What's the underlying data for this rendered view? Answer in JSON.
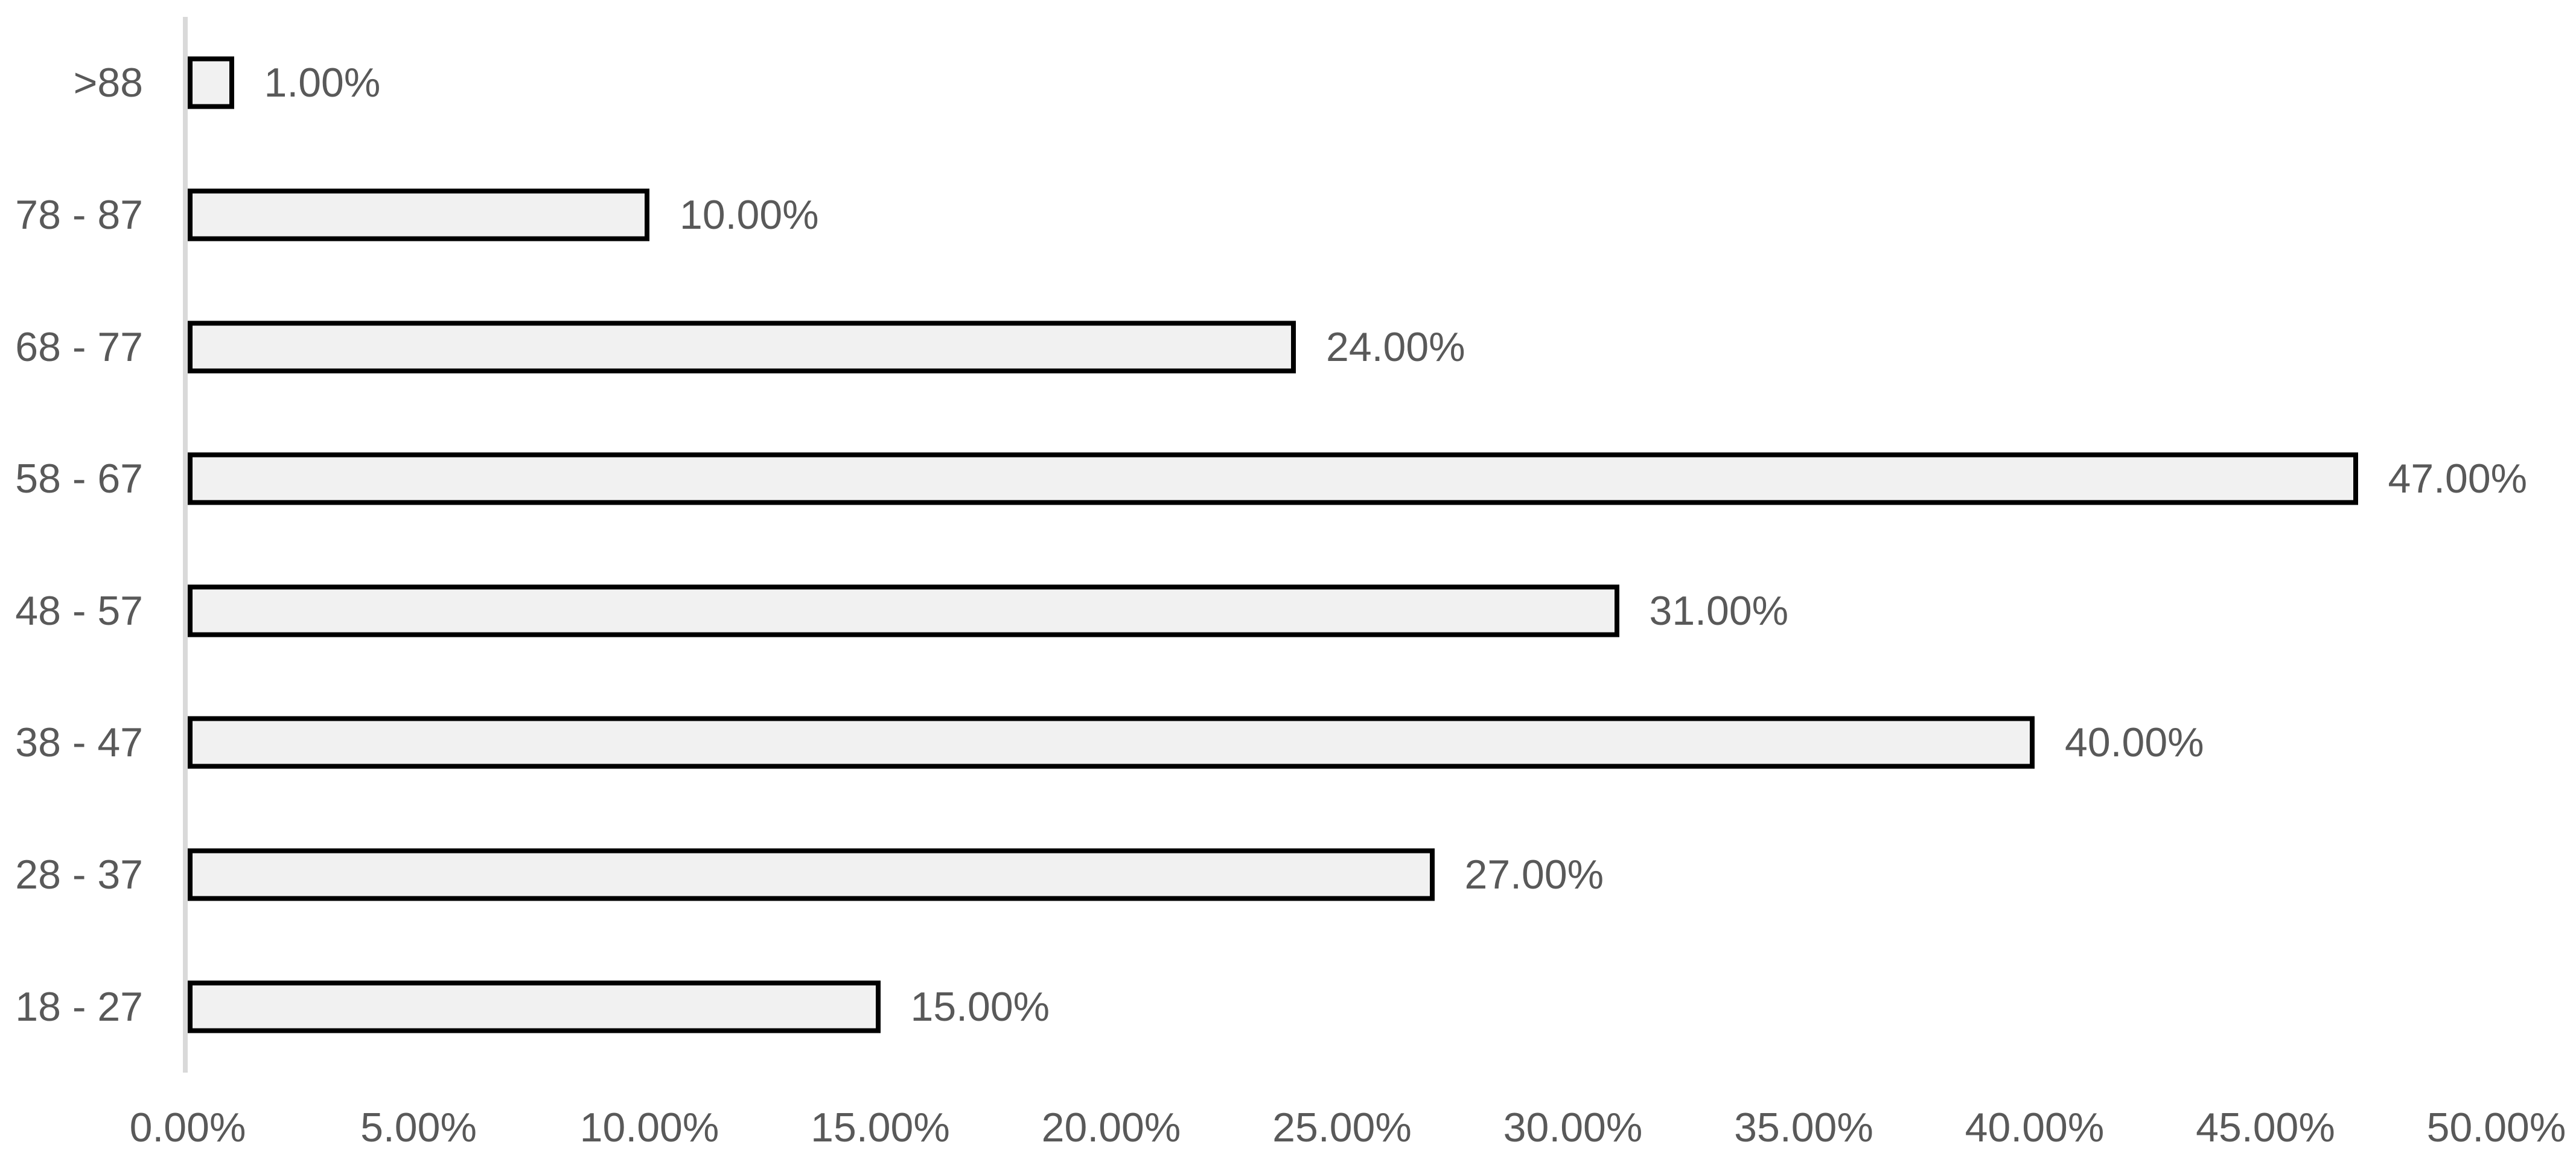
{
  "chart_data": {
    "type": "bar",
    "orientation": "horizontal",
    "title": "",
    "xlabel": "",
    "ylabel": "",
    "xlim": [
      0,
      50
    ],
    "x_tick_step": 5,
    "x_tick_labels": [
      "0.00%",
      "5.00%",
      "10.00%",
      "15.00%",
      "20.00%",
      "25.00%",
      "30.00%",
      "35.00%",
      "40.00%",
      "45.00%",
      "50.00%"
    ],
    "categories": [
      ">88",
      "78 - 87",
      "68 - 77",
      "58 - 67",
      "48 - 57",
      "38 - 47",
      "28 - 37",
      "18 - 27"
    ],
    "values": [
      1,
      10,
      24,
      47,
      31,
      40,
      27,
      15
    ],
    "value_labels": [
      "1.00%",
      "10.00%",
      "24.00%",
      "47.00%",
      "31.00%",
      "40.00%",
      "27.00%",
      "15.00%"
    ],
    "grid": "off",
    "legend": "none",
    "bar_fill_color": "#F1F1F1",
    "bar_border_color": "#000000",
    "axis_line_color": "#D9D9D9",
    "text_color": "#595959",
    "background_color": "#FFFFFF"
  }
}
